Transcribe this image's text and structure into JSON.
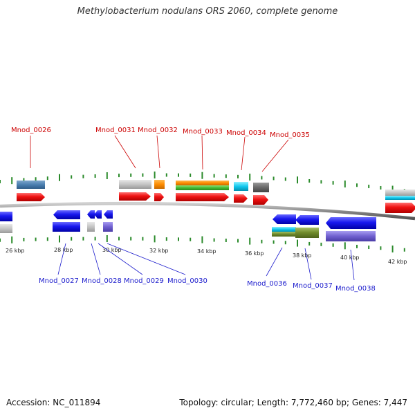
{
  "header": {
    "title": "Methylobacterium nodulans ORS 2060, complete genome"
  },
  "footer": {
    "accession": "Accession: NC_011894",
    "topology": "Topology: circular; Length: 7,772,460 bp; Genes: 7,447"
  },
  "scale_labels": [
    "26 kbp",
    "28 kbp",
    "30 kbp",
    "32 kbp",
    "34 kbp",
    "36 kbp",
    "38 kbp",
    "40 kbp",
    "42 kbp"
  ],
  "gene_labels_top": [
    "Mnod_0026",
    "Mnod_0031",
    "Mnod_0032",
    "Mnod_0033",
    "Mnod_0034",
    "Mnod_0035"
  ],
  "gene_labels_bottom": [
    "Mnod_0027",
    "Mnod_0028",
    "Mnod_0029",
    "Mnod_0030",
    "Mnod_0036",
    "Mnod_0037",
    "Mnod_0038"
  ],
  "colors": {
    "forward_label": "#cc0000",
    "reverse_label": "#1a1acc",
    "tick": "#2a8a2a",
    "backbone": "#8a8a8a",
    "forward_gene": "#ee1111",
    "reverse_gene": "#1818ee"
  }
}
